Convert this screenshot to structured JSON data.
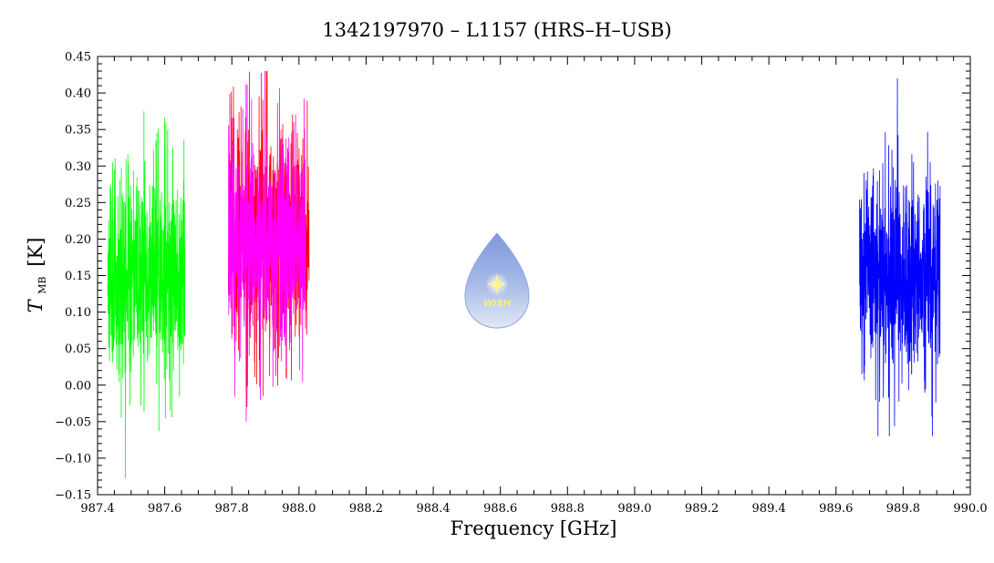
{
  "chart_data": {
    "type": "line",
    "title": "1342197970 – L1157 (HRS–H–USB)",
    "xlabel": "Frequency [GHz]",
    "ylabel_main": "T",
    "ylabel_sub": "MB",
    "ylabel_unit": "[K]",
    "xlim": [
      987.4,
      990.0
    ],
    "ylim": [
      -0.15,
      0.45
    ],
    "x_ticks": [
      987.4,
      987.6,
      987.8,
      988.0,
      988.2,
      988.4,
      988.6,
      988.8,
      989.0,
      989.2,
      989.4,
      989.6,
      989.8,
      990.0
    ],
    "x_tick_labels": [
      "987.4",
      "987.6",
      "987.8",
      "988.0",
      "988.2",
      "988.4",
      "988.6",
      "988.8",
      "989.0",
      "989.2",
      "989.4",
      "989.6",
      "989.8",
      "990.0"
    ],
    "y_ticks": [
      -0.15,
      -0.1,
      -0.05,
      0.0,
      0.05,
      0.1,
      0.15,
      0.2,
      0.25,
      0.3,
      0.35,
      0.4,
      0.45
    ],
    "y_tick_labels": [
      "−0.15",
      "−0.10",
      "−0.05",
      "0.00",
      "0.05",
      "0.10",
      "0.15",
      "0.20",
      "0.25",
      "0.30",
      "0.35",
      "0.40",
      "0.45"
    ],
    "grid": false,
    "legend": "none",
    "series": [
      {
        "color": "#00ff00",
        "x_range": [
          987.43,
          987.66
        ],
        "mean": 0.155,
        "noise_amplitude": 0.065,
        "min": -0.128,
        "max": 0.375,
        "seed": 11
      },
      {
        "color": "#ff0000",
        "x_range": [
          987.79,
          988.03
        ],
        "mean": 0.205,
        "noise_amplitude": 0.07,
        "min": -0.03,
        "max": 0.43,
        "seed": 23
      },
      {
        "color": "#ff00ff",
        "x_range": [
          987.79,
          988.02
        ],
        "mean": 0.195,
        "noise_amplitude": 0.065,
        "min": -0.05,
        "max": 0.43,
        "seed": 37
      },
      {
        "color": "#0000ff",
        "x_range": [
          989.67,
          989.91
        ],
        "mean": 0.155,
        "noise_amplitude": 0.07,
        "min": -0.07,
        "max": 0.42,
        "seed": 53
      }
    ]
  },
  "logo": {
    "text": "WISH",
    "color_top": "#6f8fd6",
    "color_bottom": "#d7e0f5"
  }
}
